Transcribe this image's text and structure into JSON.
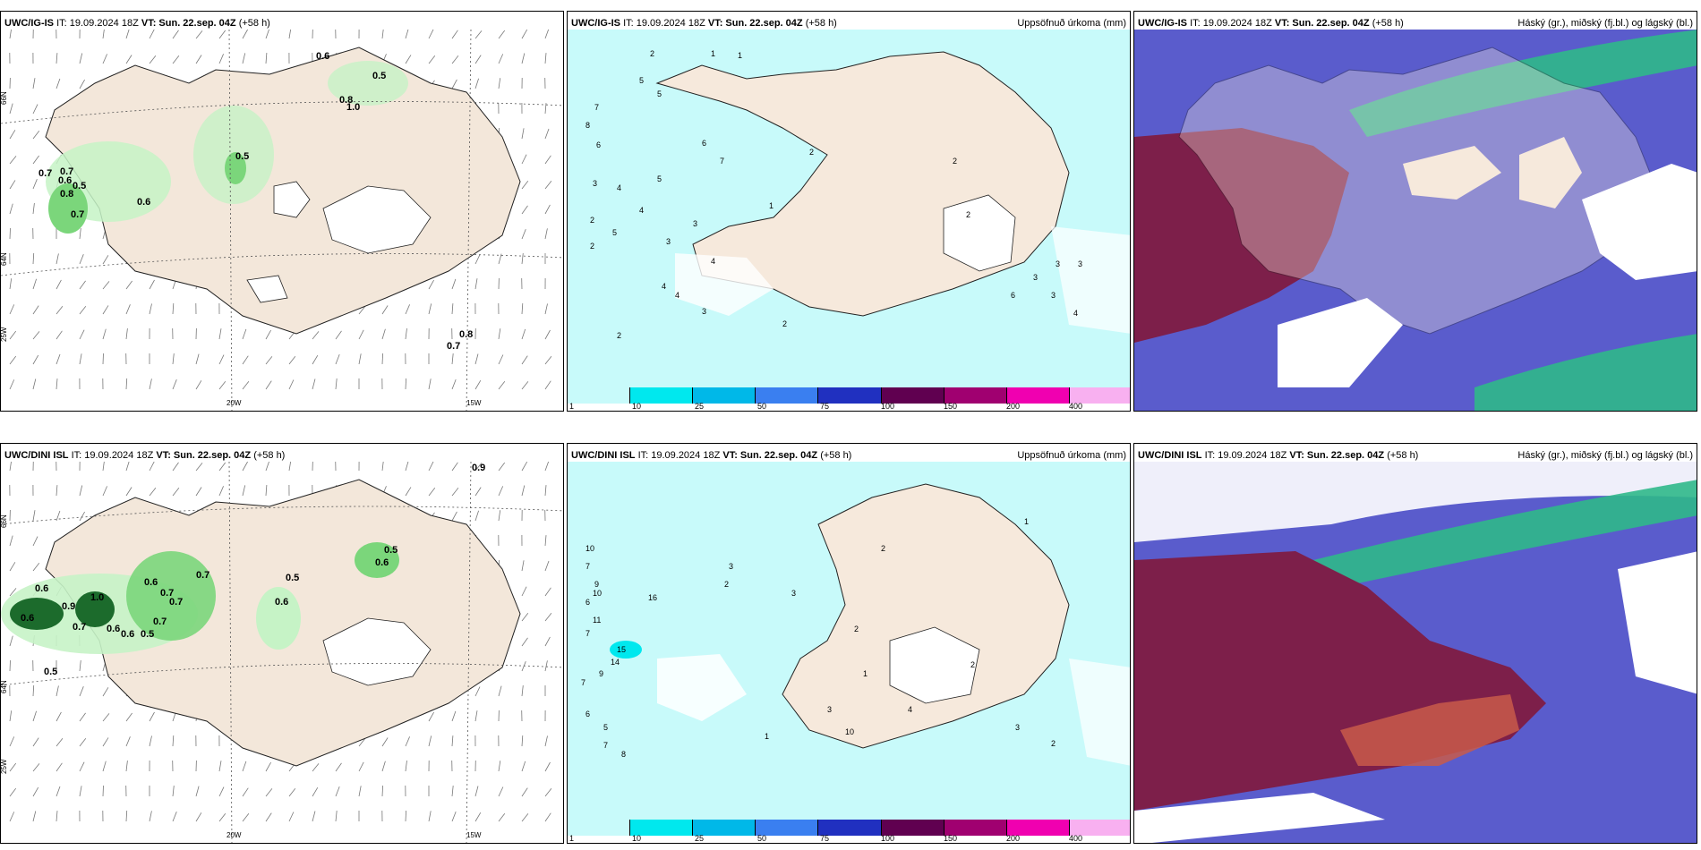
{
  "panels": [
    {
      "model": "UWC/IG-IS",
      "it_label": "IT: 19.09.2024 18Z",
      "vt_label": "VT: Sun. 22.sep. 04Z",
      "lead": "(+58 h)",
      "title_right": ""
    },
    {
      "model": "UWC/IG-IS",
      "it_label": "IT: 19.09.2024 18Z",
      "vt_label": "VT: Sun. 22.sep. 04Z",
      "lead": "(+58 h)",
      "title_right": "Uppsöfnuð úrkoma (mm)"
    },
    {
      "model": "UWC/IG-IS",
      "it_label": "IT: 19.09.2024 18Z",
      "vt_label": "VT: Sun. 22.sep. 04Z",
      "lead": "(+58 h)",
      "title_right": "Háský (gr.), miðský (fj.bl.) og lágský (bl.)"
    },
    {
      "model": "UWC/DINI ISL",
      "it_label": "IT: 19.09.2024 18Z",
      "vt_label": "VT: Sun. 22.sep. 04Z",
      "lead": "(+58 h)",
      "title_right": ""
    },
    {
      "model": "UWC/DINI ISL",
      "it_label": "IT: 19.09.2024 18Z",
      "vt_label": "VT: Sun. 22.sep. 04Z",
      "lead": "(+58 h)",
      "title_right": "Uppsöfnuð úrkoma (mm)"
    },
    {
      "model": "UWC/DINI ISL",
      "it_label": "IT: 19.09.2024 18Z",
      "vt_label": "VT: Sun. 22.sep. 04Z",
      "lead": "(+58 h)",
      "title_right": "Háský (gr.), miðský (fj.bl.) og lágský (bl.)"
    }
  ],
  "axis_labels": {
    "lon_20": "20W",
    "lon_15": "15W",
    "lat_66": "66N",
    "lat_64": "64N",
    "lon_25": "25W"
  },
  "colorbar": {
    "ticks": [
      "1",
      "10",
      "25",
      "50",
      "75",
      "100",
      "150",
      "200",
      "400"
    ],
    "colors": [
      "#c8fafa",
      "#00e8ee",
      "#00b8e8",
      "#3a7ff0",
      "#2030c0",
      "#600050",
      "#a00070",
      "#f000b0",
      "#f8b0f0"
    ]
  },
  "wind_top_labels": [
    "0.6",
    "0.5",
    "0.8",
    "1.0",
    "0.5",
    "0.7",
    "0.7",
    "0.5",
    "0.8",
    "0.6",
    "0.7",
    "0.8",
    "0.7",
    "0.6"
  ],
  "wind_bottom_labels": [
    "0.6",
    "0.9",
    "0.5",
    "0.6",
    "0.6",
    "0.7",
    "0.5",
    "0.6",
    "0.9",
    "1.0",
    "0.7",
    "0.7",
    "0.6",
    "0.7",
    "0.6",
    "0.5",
    "0.7",
    "0.5",
    "0.6"
  ],
  "precip_top_labels": [
    "2",
    "1",
    "5",
    "5",
    "7",
    "8",
    "6",
    "3",
    "4",
    "5",
    "2",
    "4",
    "2",
    "3",
    "1",
    "2",
    "6",
    "5",
    "3",
    "7",
    "4",
    "4",
    "2",
    "3",
    "2",
    "4",
    "3",
    "3",
    "1",
    "2",
    "2",
    "3",
    "6",
    "3",
    "4"
  ],
  "precip_bottom_labels": [
    "10",
    "7",
    "9",
    "6",
    "10",
    "11",
    "15",
    "14",
    "7",
    "9",
    "16",
    "3",
    "2",
    "3",
    "2",
    "1",
    "1",
    "2",
    "2",
    "3",
    "2",
    "1",
    "5",
    "7",
    "8",
    "6",
    "7",
    "10",
    "3",
    "4"
  ],
  "colors": {
    "land": "#f6e9dc",
    "green_light": "#c6f3c6",
    "green_mid": "#7bd67b",
    "green_dark": "#1c6b2c",
    "precip_light": "#c8fafa",
    "cloud_blue": "#5a5ccc",
    "cloud_red": "#7d1f4a",
    "cloud_green": "#2fb88a"
  }
}
